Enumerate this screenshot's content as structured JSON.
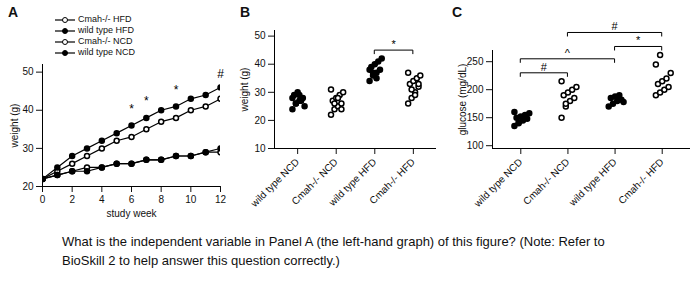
{
  "chart_data": [
    {
      "type": "line",
      "panel": "A",
      "xlabel": "study week",
      "ylabel": "weight (g)",
      "x": [
        0,
        1,
        2,
        3,
        4,
        5,
        6,
        7,
        8,
        9,
        10,
        11,
        12
      ],
      "xlim": [
        0,
        12
      ],
      "xticks": [
        0,
        2,
        4,
        6,
        8,
        10,
        12
      ],
      "ylim": [
        20,
        52
      ],
      "yticks": [
        20,
        30,
        40,
        50
      ],
      "legend": "top-left",
      "series": [
        {
          "name": "Cmah-/- HFD",
          "color": "#000000",
          "marker": "open_circle",
          "values": [
            22,
            24,
            26,
            28,
            30,
            32,
            33,
            35,
            37,
            38,
            40,
            41,
            43
          ]
        },
        {
          "name": "wild type HFD",
          "color": "#000000",
          "marker": "circle",
          "values": [
            22,
            25,
            28,
            30,
            32,
            34,
            36,
            38,
            40,
            41,
            43,
            44,
            46
          ]
        },
        {
          "name": "Cmah-/- NCD",
          "color": "#000000",
          "marker": "open_circle",
          "values": [
            22,
            23,
            24,
            25,
            25,
            26,
            26,
            27,
            27,
            28,
            28,
            29,
            29
          ]
        },
        {
          "name": "wild type NCD",
          "color": "#000000",
          "marker": "circle",
          "values": [
            22,
            23,
            24,
            24,
            25,
            26,
            26,
            27,
            27,
            28,
            28,
            29,
            30
          ]
        }
      ],
      "annotations": [
        {
          "x": 6,
          "y": 38,
          "text": "*"
        },
        {
          "x": 7,
          "y": 40,
          "text": "*"
        },
        {
          "x": 9,
          "y": 43,
          "text": "*"
        },
        {
          "x": 12,
          "y": 47,
          "text": "#"
        }
      ]
    },
    {
      "type": "scatter",
      "panel": "B",
      "ylabel": "weight (g)",
      "ylim": [
        10,
        52
      ],
      "yticks": [
        10,
        20,
        30,
        40,
        50
      ],
      "series": [
        {
          "name": "wild type NCD",
          "color": "#000000",
          "marker": "circle",
          "values": [
            24,
            26,
            27,
            28,
            29,
            30,
            27,
            25,
            28,
            26,
            29
          ]
        },
        {
          "name": "Cmah-/- NCD",
          "color": "#000000",
          "marker": "open_circle",
          "values": [
            22,
            24,
            25,
            26,
            27,
            28,
            29,
            30,
            31,
            26,
            28,
            24
          ]
        },
        {
          "name": "wild type HFD",
          "color": "#000000",
          "marker": "circle",
          "values": [
            34,
            36,
            37,
            38,
            39,
            40,
            41,
            42,
            38,
            37,
            35
          ]
        },
        {
          "name": "Cmah-/- HFD",
          "color": "#000000",
          "marker": "open_circle",
          "values": [
            26,
            28,
            30,
            32,
            33,
            34,
            35,
            36,
            37,
            31,
            29,
            33
          ]
        }
      ],
      "brackets": [
        {
          "from": "wild type HFD",
          "to": "Cmah-/- HFD",
          "text": "*"
        }
      ]
    },
    {
      "type": "scatter",
      "panel": "C",
      "ylabel": "glucose (mg/dL)",
      "ylim": [
        95,
        270
      ],
      "yticks": [
        100,
        150,
        200,
        250
      ],
      "series": [
        {
          "name": "wild type NCD",
          "color": "#000000",
          "marker": "circle",
          "values": [
            135,
            140,
            145,
            148,
            150,
            152,
            155,
            158,
            160,
            142
          ]
        },
        {
          "name": "Cmah-/- NCD",
          "color": "#000000",
          "marker": "open_circle",
          "values": [
            150,
            170,
            180,
            185,
            190,
            195,
            200,
            205,
            215,
            175
          ]
        },
        {
          "name": "wild type HFD",
          "color": "#000000",
          "marker": "circle",
          "values": [
            170,
            175,
            180,
            182,
            185,
            188,
            190,
            178
          ]
        },
        {
          "name": "Cmah-/- HFD",
          "color": "#000000",
          "marker": "open_circle",
          "values": [
            190,
            195,
            200,
            205,
            210,
            215,
            220,
            230,
            245,
            262
          ]
        }
      ],
      "brackets": [
        {
          "from": "wild type NCD",
          "to": "Cmah-/- NCD",
          "text": "#"
        },
        {
          "from": "wild type NCD",
          "to": "wild type HFD",
          "text": "^"
        },
        {
          "from": "wild type HFD",
          "to": "Cmah-/- HFD",
          "text": "*"
        },
        {
          "from": "Cmah-/- NCD",
          "to": "Cmah-/- HFD",
          "text": "#"
        }
      ]
    }
  ],
  "question": [
    "What is the independent variable in Panel A (the left-hand graph) of this figure? (Note: Refer to",
    "BioSkill 2 to help answer this question correctly.)"
  ]
}
